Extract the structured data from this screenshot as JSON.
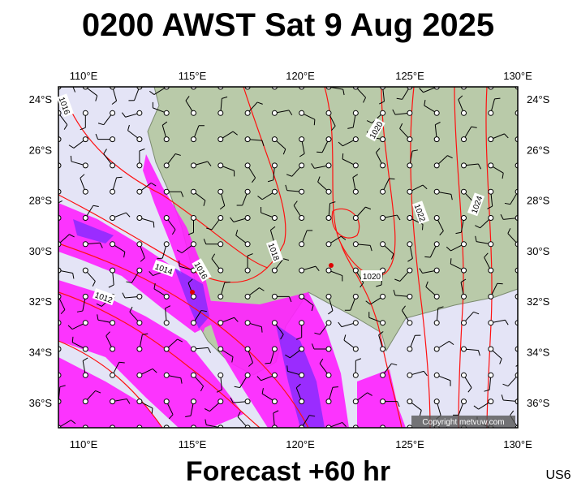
{
  "header": {
    "title": "0200 AWST Sat 9 Aug 2025"
  },
  "map": {
    "lon_labels": [
      "110°E",
      "115°E",
      "120°E",
      "125°E",
      "130°E"
    ],
    "lat_labels": [
      "24°S",
      "26°S",
      "28°S",
      "30°S",
      "32°S",
      "34°S",
      "36°S"
    ],
    "isobar_labels": [
      "1016",
      "1020",
      "1022",
      "1024",
      "1018",
      "1016",
      "1014",
      "1012",
      "1020"
    ],
    "copyright": "Copyright metvuw.com"
  },
  "footer": {
    "caption": "Forecast +60 hr",
    "code": "US6"
  }
}
